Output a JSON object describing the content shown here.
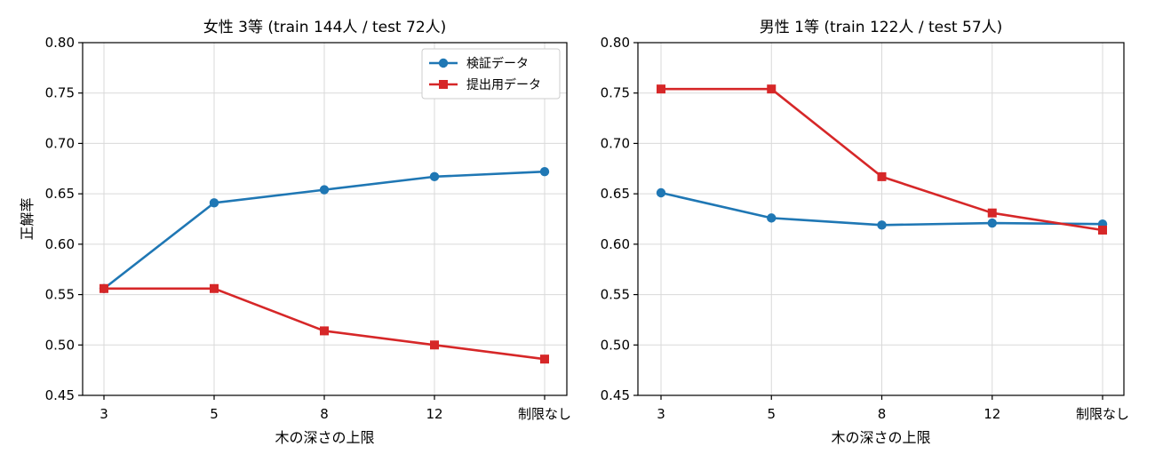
{
  "chart_data": [
    {
      "type": "line",
      "title": "女性 3等 (train 144人 / test 72人)",
      "xlabel": "木の深さの上限",
      "ylabel": "正解率",
      "categories": [
        "3",
        "5",
        "8",
        "12",
        "制限なし"
      ],
      "ylim": [
        0.45,
        0.8
      ],
      "yticks": [
        "0.45",
        "0.50",
        "0.55",
        "0.60",
        "0.65",
        "0.70",
        "0.75",
        "0.80"
      ],
      "grid": true,
      "legend_position": "top-right",
      "series": [
        {
          "name": "検証データ",
          "color": "#1f77b4",
          "marker": "circle",
          "values": [
            0.556,
            0.641,
            0.654,
            0.667,
            0.672
          ]
        },
        {
          "name": "提出用データ",
          "color": "#d62728",
          "marker": "square",
          "values": [
            0.556,
            0.556,
            0.514,
            0.5,
            0.486
          ]
        }
      ]
    },
    {
      "type": "line",
      "title": "男性 1等 (train 122人 / test 57人)",
      "xlabel": "木の深さの上限",
      "ylabel": "",
      "categories": [
        "3",
        "5",
        "8",
        "12",
        "制限なし"
      ],
      "ylim": [
        0.45,
        0.8
      ],
      "yticks": [
        "0.45",
        "0.50",
        "0.55",
        "0.60",
        "0.65",
        "0.70",
        "0.75",
        "0.80"
      ],
      "grid": true,
      "legend_position": "none",
      "series": [
        {
          "color": "#1f77b4",
          "marker": "circle",
          "values": [
            0.651,
            0.626,
            0.619,
            0.621,
            0.62
          ]
        },
        {
          "color": "#d62728",
          "marker": "square",
          "values": [
            0.754,
            0.754,
            0.667,
            0.631,
            0.614
          ]
        }
      ]
    }
  ]
}
